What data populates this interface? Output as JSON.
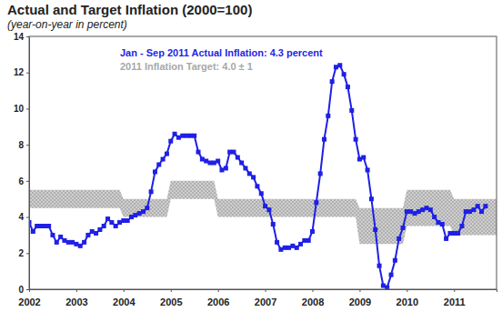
{
  "chart_data": {
    "type": "line",
    "title": "Actual and Target Inflation (2000=100)",
    "subtitle": "(year-on-year in percent)",
    "xlim": [
      2002,
      2011.9
    ],
    "xticks": [
      2002,
      2003,
      2004,
      2005,
      2006,
      2007,
      2008,
      2009,
      2010,
      2011
    ],
    "ylim": [
      0,
      14
    ],
    "yticks": [
      0,
      2,
      4,
      6,
      8,
      10,
      12,
      14
    ],
    "grid": false,
    "legend": "upper left",
    "series": [
      {
        "name": "2011 Inflation Target: 4.0 ± 1",
        "type": "band",
        "color": "#a8a8a8",
        "x": [
          2002,
          2002.917,
          2003,
          2003.917,
          2004,
          2004.917,
          2005,
          2005.917,
          2006,
          2006.917,
          2007,
          2007.917,
          2008,
          2008.917,
          2009,
          2009.917,
          2010,
          2010.917,
          2011,
          2011.9
        ],
        "low": [
          4.5,
          4.5,
          4.5,
          4.5,
          4,
          4,
          5,
          5,
          4,
          4,
          4,
          4,
          4,
          4,
          2.5,
          2.5,
          3.5,
          3.5,
          3,
          3
        ],
        "high": [
          5.5,
          5.5,
          5.5,
          5.5,
          5,
          5,
          6,
          6,
          5,
          5,
          5,
          5,
          5,
          5,
          4.5,
          4.5,
          5.5,
          5.5,
          5,
          5
        ]
      },
      {
        "name": "Jan - Sep 2011 Actual Inflation: 4.3 percent",
        "type": "line",
        "color": "#1f1fe6",
        "marker": "square",
        "line_style": "solid",
        "x": [
          2002,
          2002.083,
          2002.167,
          2002.25,
          2002.333,
          2002.417,
          2002.5,
          2002.583,
          2002.667,
          2002.75,
          2002.833,
          2002.917,
          2003,
          2003.083,
          2003.167,
          2003.25,
          2003.333,
          2003.417,
          2003.5,
          2003.583,
          2003.667,
          2003.75,
          2003.833,
          2003.917,
          2004,
          2004.083,
          2004.167,
          2004.25,
          2004.333,
          2004.417,
          2004.5,
          2004.583,
          2004.667,
          2004.75,
          2004.833,
          2004.917,
          2005,
          2005.083,
          2005.167,
          2005.25,
          2005.333,
          2005.417,
          2005.5,
          2005.583,
          2005.667,
          2005.75,
          2005.833,
          2005.917,
          2006,
          2006.083,
          2006.167,
          2006.25,
          2006.333,
          2006.417,
          2006.5,
          2006.583,
          2006.667,
          2006.75,
          2006.833,
          2006.917,
          2007,
          2007.083,
          2007.167,
          2007.25,
          2007.333,
          2007.417,
          2007.5,
          2007.583,
          2007.667,
          2007.75,
          2007.833,
          2007.917,
          2008,
          2008.083,
          2008.167,
          2008.25,
          2008.333,
          2008.417,
          2008.5,
          2008.583,
          2008.667,
          2008.75,
          2008.833,
          2008.917,
          2009,
          2009.083,
          2009.167,
          2009.25,
          2009.333,
          2009.417,
          2009.5,
          2009.583,
          2009.667,
          2009.75,
          2009.833,
          2009.917,
          2010,
          2010.083,
          2010.167,
          2010.25,
          2010.333,
          2010.417,
          2010.5,
          2010.583,
          2010.667,
          2010.75,
          2010.833,
          2010.917,
          2011,
          2011.083,
          2011.167,
          2011.25,
          2011.333,
          2011.417,
          2011.5,
          2011.583,
          2011.667
        ],
        "values": [
          3.7,
          3.2,
          3.5,
          3.5,
          3.5,
          3.5,
          3.0,
          2.6,
          2.9,
          2.7,
          2.6,
          2.6,
          2.5,
          2.4,
          2.6,
          3.0,
          3.2,
          3.1,
          3.3,
          3.5,
          3.9,
          3.7,
          3.5,
          3.7,
          3.8,
          3.8,
          4.0,
          4.1,
          4.2,
          4.3,
          4.5,
          5.4,
          6.5,
          6.9,
          7.2,
          7.5,
          8.2,
          8.6,
          8.4,
          8.5,
          8.5,
          8.5,
          8.5,
          7.6,
          7.2,
          7.1,
          7.0,
          7.0,
          7.1,
          6.6,
          6.7,
          7.6,
          7.6,
          7.3,
          7.0,
          6.7,
          6.4,
          6.2,
          5.7,
          5.3,
          4.6,
          4.4,
          3.6,
          2.6,
          2.2,
          2.3,
          2.3,
          2.4,
          2.3,
          2.5,
          2.7,
          2.7,
          3.2,
          4.8,
          6.4,
          8.3,
          9.6,
          11.5,
          12.3,
          12.4,
          11.9,
          11.2,
          9.9,
          8.3,
          7.2,
          7.3,
          6.6,
          5.0,
          3.3,
          1.3,
          0.2,
          0.1,
          0.8,
          1.6,
          2.8,
          3.4,
          4.3,
          4.3,
          4.2,
          4.3,
          4.4,
          4.5,
          4.4,
          4.0,
          3.7,
          3.6,
          2.8,
          3.1,
          3.1,
          3.1,
          3.5,
          4.3,
          4.3,
          4.4,
          4.6,
          4.3,
          4.6
        ]
      }
    ]
  }
}
